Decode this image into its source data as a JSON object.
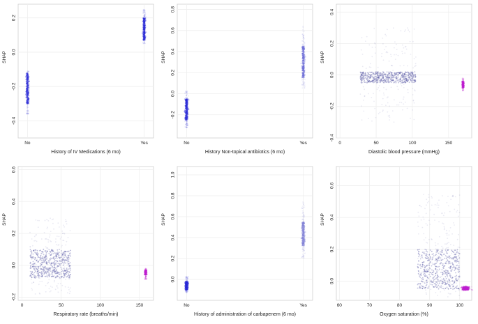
{
  "chart_data": [
    {
      "type": "scatter",
      "xlabel": "History of IV Medications (6 mo)",
      "ylabel": "SHAP",
      "xcategories": [
        "No",
        "Yes"
      ],
      "xlim": [
        0,
        1
      ],
      "ylim": [
        -0.5,
        0.28
      ],
      "yticks": [
        -0.4,
        -0.2,
        0.0,
        0.2
      ],
      "ytick_labels": [
        "-0.4",
        "-0.2",
        "0.0",
        "0.2"
      ],
      "grid": true,
      "series": [
        {
          "x": 0,
          "y_range": [
            -0.36,
            -0.11
          ],
          "dense_range": [
            -0.3,
            -0.12
          ],
          "color": "#2b2bd6"
        },
        {
          "x": 1,
          "y_range": [
            0.05,
            0.25
          ],
          "dense_range": [
            0.07,
            0.2
          ],
          "color": "#2b2bd6"
        }
      ]
    },
    {
      "type": "scatter",
      "xlabel": "History Non-topical antibiotics (6 mo)",
      "ylabel": "SHAP",
      "xcategories": [
        "No",
        "Yes"
      ],
      "xlim": [
        0,
        1
      ],
      "ylim": [
        -0.42,
        0.85
      ],
      "yticks": [
        -0.2,
        0.0,
        0.2,
        0.4,
        0.6,
        0.8
      ],
      "ytick_labels": [
        "-0.2",
        "0.0",
        "0.2",
        "0.4",
        "0.6",
        "0.8"
      ],
      "grid": true,
      "series": [
        {
          "x": 0,
          "y_range": [
            -0.33,
            0.03
          ],
          "dense_range": [
            -0.25,
            -0.05
          ],
          "color": "#2b2bd6"
        },
        {
          "x": 1,
          "y_range": [
            0.05,
            0.65
          ],
          "dense_range": [
            0.15,
            0.45
          ],
          "color": "#6a6ad8"
        }
      ]
    },
    {
      "type": "scatter",
      "xlabel": "Diastolic blood pressure (mmHg)",
      "ylabel": "SHAP",
      "xlim": [
        -5,
        182
      ],
      "ylim": [
        -0.4,
        0.45
      ],
      "xticks": [
        0,
        50,
        100,
        150
      ],
      "xtick_labels": [
        "0",
        "50",
        "100",
        "150"
      ],
      "yticks": [
        -0.4,
        -0.2,
        0.0,
        0.2,
        0.4
      ],
      "ytick_labels": [
        "-0.4",
        "-0.2",
        "0.0",
        "0.2",
        "0.4"
      ],
      "grid": true,
      "series": [
        {
          "x_range": [
            28,
            105
          ],
          "y_range": [
            -0.3,
            0.3
          ],
          "dense_range": [
            -0.05,
            0.02
          ],
          "color": "#5050a0"
        },
        {
          "x": 170,
          "y_range": [
            -0.1,
            -0.02
          ],
          "dense_range": [
            -0.08,
            -0.04
          ],
          "color": "#c020d0"
        }
      ]
    },
    {
      "type": "scatter",
      "xlabel": "Respiratory rate (breaths/min)",
      "ylabel": "SHAP",
      "xlim": [
        -5,
        168
      ],
      "ylim": [
        -0.22,
        0.62
      ],
      "xticks": [
        0,
        50,
        100,
        150
      ],
      "xtick_labels": [
        "0",
        "50",
        "100",
        "150"
      ],
      "yticks": [
        -0.2,
        0.0,
        0.2,
        0.4,
        0.6
      ],
      "ytick_labels": [
        "-0.2",
        "0.0",
        "0.2",
        "0.4",
        "0.6"
      ],
      "grid": true,
      "series": [
        {
          "x_range": [
            10,
            62
          ],
          "y_range": [
            -0.18,
            0.3
          ],
          "dense_range": [
            -0.08,
            0.1
          ],
          "color": "#5050a0"
        },
        {
          "x": 158,
          "y_range": [
            -0.09,
            -0.02
          ],
          "dense_range": [
            -0.06,
            -0.03
          ],
          "color": "#c020d0"
        }
      ]
    },
    {
      "type": "scatter",
      "xlabel": "History of administration of carbapenem (6 mo)",
      "ylabel": "SHAP",
      "xcategories": [
        "No",
        "Yes"
      ],
      "xlim": [
        0,
        1
      ],
      "ylim": [
        -0.2,
        1.08
      ],
      "yticks": [
        0.0,
        0.2,
        0.4,
        0.6,
        0.8,
        1.0
      ],
      "ytick_labels": [
        "0.0",
        "0.2",
        "0.4",
        "0.6",
        "0.8",
        "1.0"
      ],
      "grid": true,
      "series": [
        {
          "x": 0,
          "y_range": [
            -0.13,
            0.03
          ],
          "dense_range": [
            -0.1,
            -0.02
          ],
          "color": "#2b2bd6"
        },
        {
          "x": 1,
          "y_range": [
            0.2,
            0.75
          ],
          "dense_range": [
            0.32,
            0.55
          ],
          "color": "#8080d8"
        }
      ]
    },
    {
      "type": "scatter",
      "xlabel": "Oxygen saturation (%)",
      "ylabel": "SHAP",
      "xlim": [
        59,
        104
      ],
      "ylim": [
        -0.12,
        0.72
      ],
      "xticks": [
        60,
        70,
        80,
        90,
        100
      ],
      "xtick_labels": [
        "60",
        "70",
        "80",
        "90",
        "100"
      ],
      "yticks": [
        0.0,
        0.2,
        0.4,
        0.6
      ],
      "ytick_labels": [
        "0.0",
        "0.2",
        "0.4",
        "0.6"
      ],
      "grid": true,
      "series": [
        {
          "x_range": [
            86,
            100
          ],
          "y_range": [
            -0.1,
            0.55
          ],
          "dense_range": [
            -0.05,
            0.2
          ],
          "color": "#5050a0"
        },
        {
          "x": 102,
          "y_range": [
            -0.06,
            -0.03
          ],
          "dense_range": [
            -0.055,
            -0.035
          ],
          "color": "#c020d0"
        }
      ]
    }
  ]
}
